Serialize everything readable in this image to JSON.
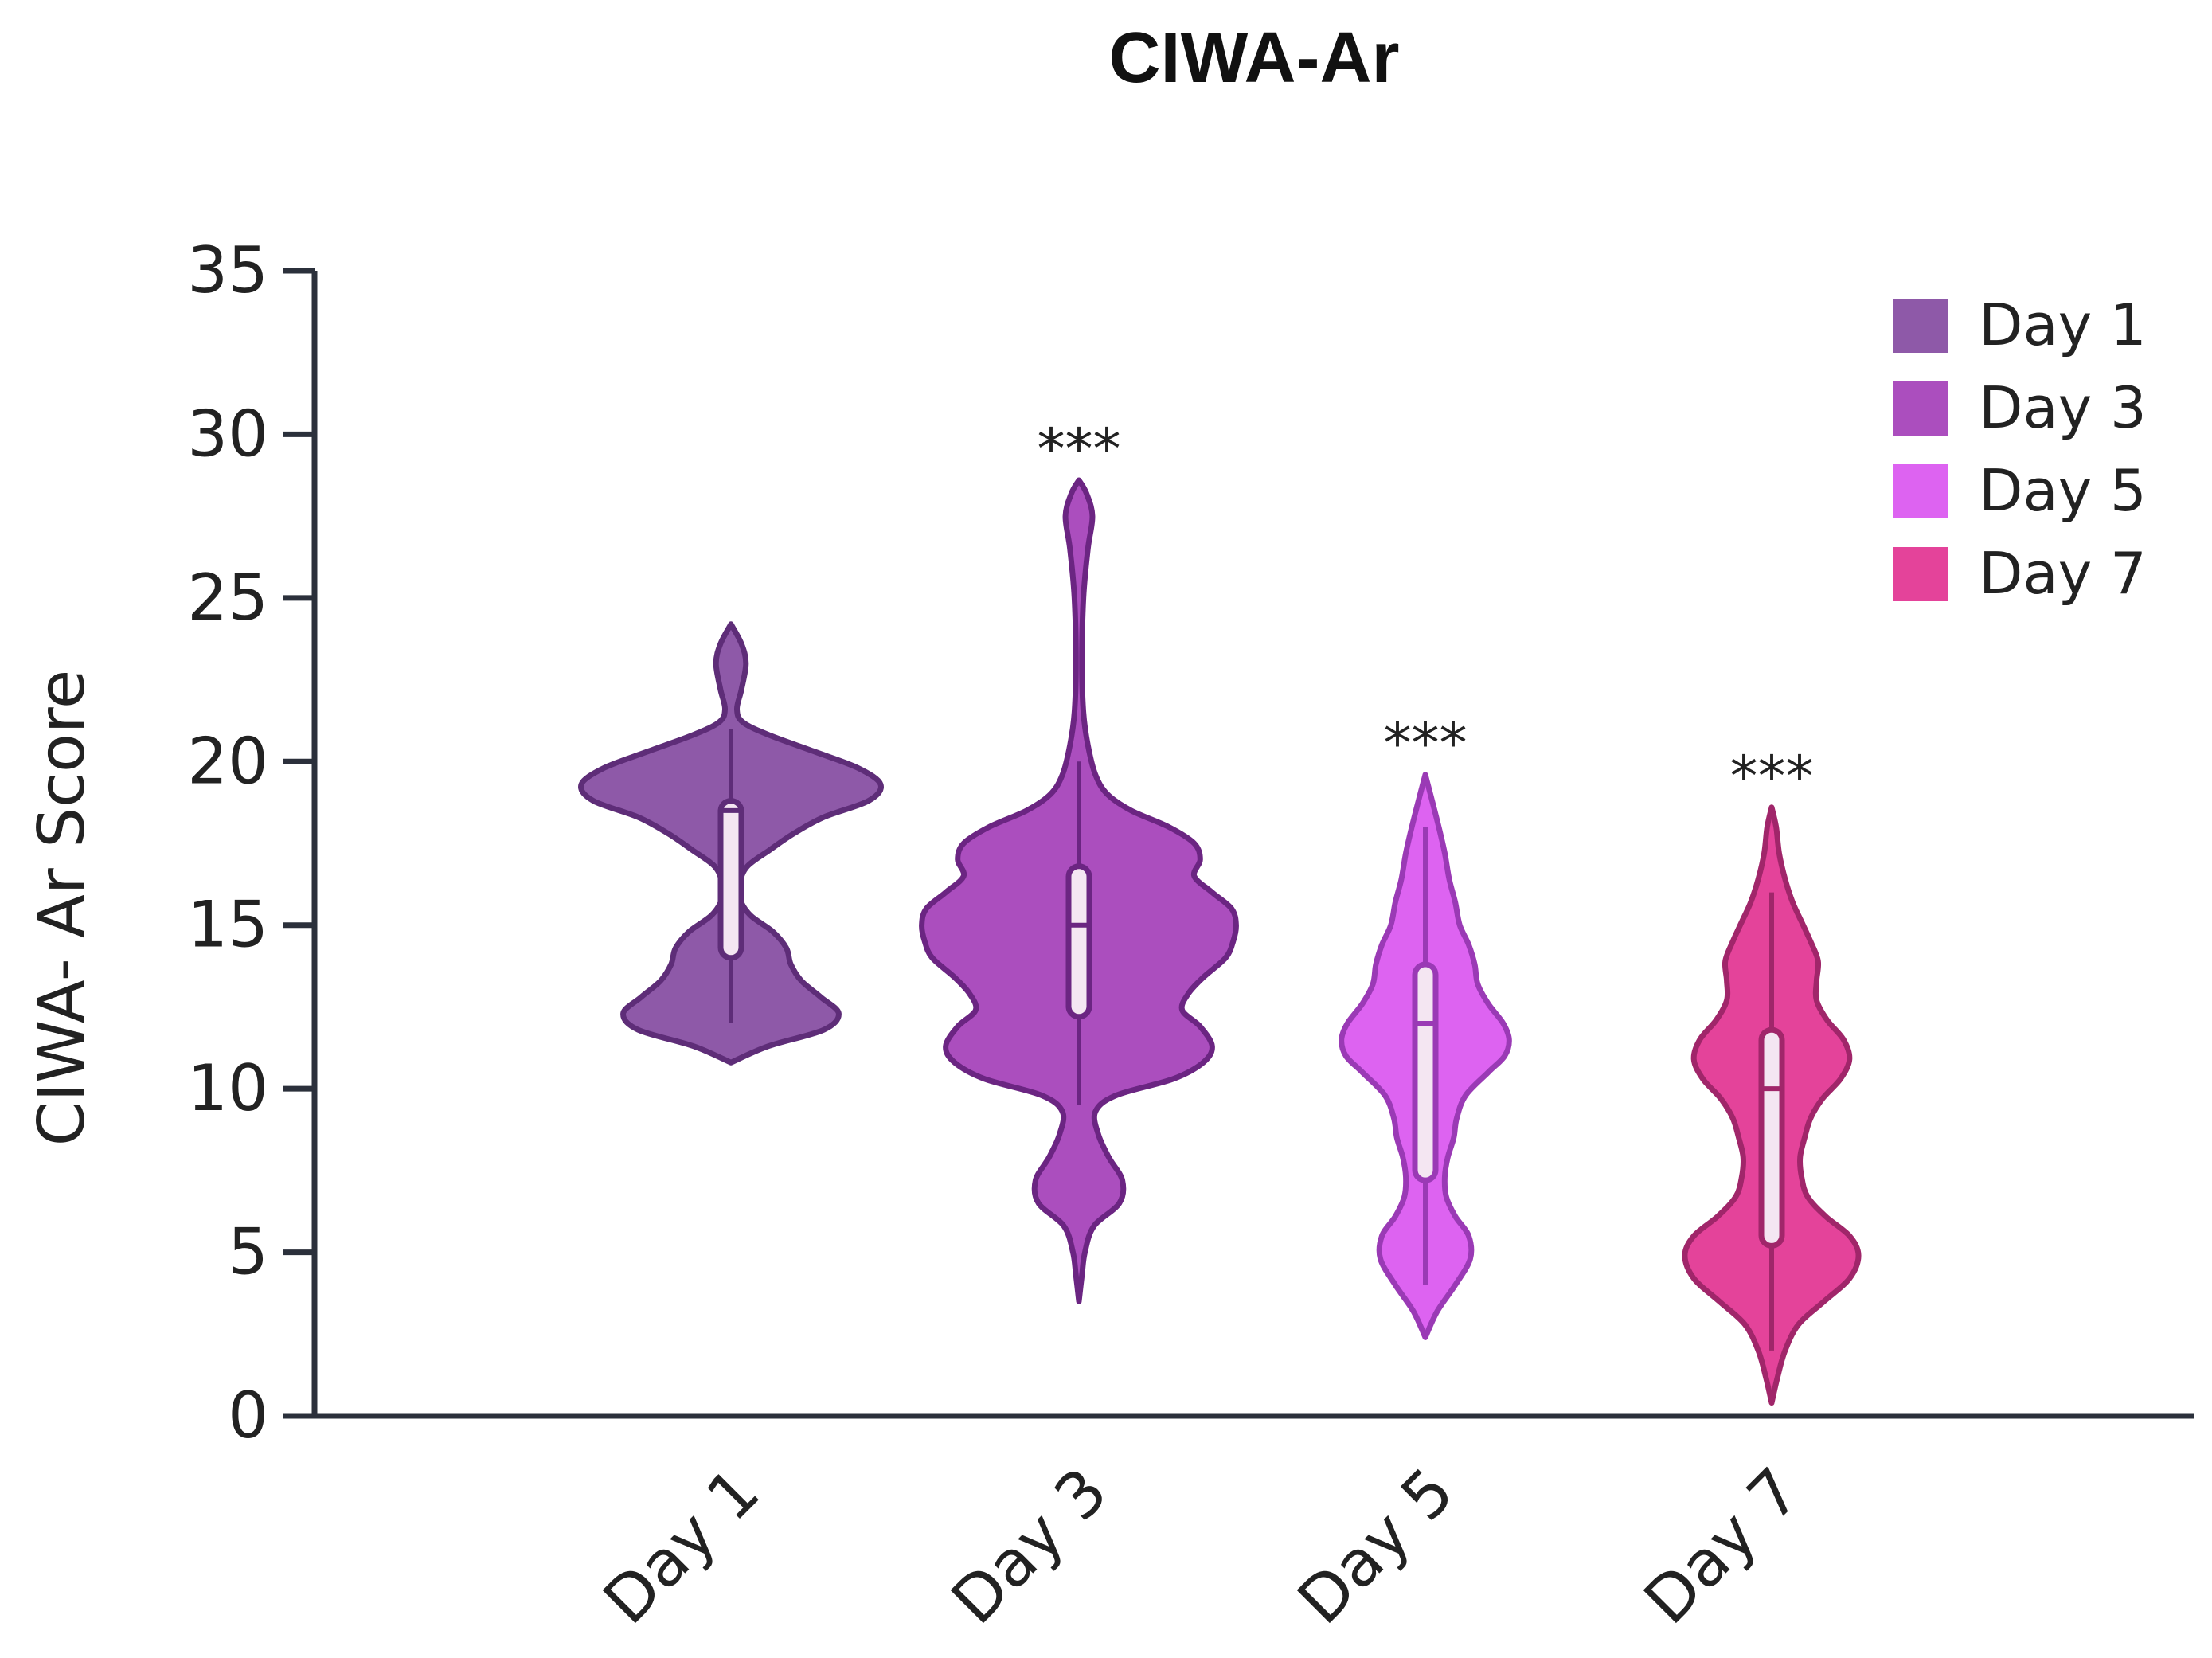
{
  "chart_data": {
    "type": "violin",
    "title": "CIWA-Ar",
    "xlabel": "",
    "ylabel": "CIWA- Ar Score",
    "ylim": [
      0,
      35
    ],
    "yticks": [
      0,
      5,
      10,
      15,
      20,
      25,
      30,
      35
    ],
    "grid": false,
    "legend_position": "top-right",
    "categories": [
      "Day 1",
      "Day 3",
      "Day 5",
      "Day 7"
    ],
    "series": [
      {
        "name": "Day 1",
        "color": "#8E59A8",
        "stroke": "#5E2D78",
        "significance": "",
        "range": [
          10.8,
          24.2
        ],
        "box": {
          "q1": 14,
          "median": 18.5,
          "q3": 18.8,
          "whisker_low": 12,
          "whisker_high": 21
        },
        "density": [
          [
            10.8,
            0
          ],
          [
            11.3,
            0.25
          ],
          [
            11.8,
            0.62
          ],
          [
            12.3,
            0.72
          ],
          [
            12.8,
            0.6
          ],
          [
            13.3,
            0.47
          ],
          [
            13.8,
            0.4
          ],
          [
            14.3,
            0.37
          ],
          [
            14.8,
            0.28
          ],
          [
            15.3,
            0.13
          ],
          [
            15.8,
            0.06
          ],
          [
            16.3,
            0.06
          ],
          [
            16.8,
            0.11
          ],
          [
            17.3,
            0.26
          ],
          [
            17.8,
            0.42
          ],
          [
            18.3,
            0.62
          ],
          [
            18.8,
            0.92
          ],
          [
            19.3,
            1.0
          ],
          [
            19.8,
            0.85
          ],
          [
            20.3,
            0.56
          ],
          [
            20.8,
            0.26
          ],
          [
            21.2,
            0.08
          ],
          [
            21.6,
            0.04
          ],
          [
            22.2,
            0.07
          ],
          [
            23.0,
            0.1
          ],
          [
            23.6,
            0.07
          ],
          [
            24.2,
            0
          ]
        ]
      },
      {
        "name": "Day 3",
        "color": "#AB4EBE",
        "stroke": "#6B2582",
        "significance": "***",
        "range": [
          3.5,
          28.6
        ],
        "box": {
          "q1": 12.2,
          "median": 15,
          "q3": 16.8,
          "whisker_low": 9.5,
          "whisker_high": 20
        },
        "density": [
          [
            3.5,
            0
          ],
          [
            4.3,
            0.02
          ],
          [
            5.0,
            0.04
          ],
          [
            5.8,
            0.1
          ],
          [
            6.5,
            0.27
          ],
          [
            7.2,
            0.29
          ],
          [
            7.9,
            0.2
          ],
          [
            8.6,
            0.13
          ],
          [
            9.3,
            0.11
          ],
          [
            9.8,
            0.25
          ],
          [
            10.3,
            0.63
          ],
          [
            10.8,
            0.83
          ],
          [
            11.3,
            0.89
          ],
          [
            11.9,
            0.81
          ],
          [
            12.4,
            0.69
          ],
          [
            12.9,
            0.73
          ],
          [
            13.4,
            0.83
          ],
          [
            14.0,
            0.98
          ],
          [
            14.5,
            1.03
          ],
          [
            15.0,
            1.05
          ],
          [
            15.5,
            1.02
          ],
          [
            16.0,
            0.89
          ],
          [
            16.5,
            0.77
          ],
          [
            17.0,
            0.81
          ],
          [
            17.5,
            0.77
          ],
          [
            18.0,
            0.6
          ],
          [
            18.5,
            0.35
          ],
          [
            19.0,
            0.19
          ],
          [
            19.6,
            0.11
          ],
          [
            20.5,
            0.06
          ],
          [
            21.5,
            0.03
          ],
          [
            23,
            0.02
          ],
          [
            25,
            0.03
          ],
          [
            26.5,
            0.06
          ],
          [
            27.5,
            0.09
          ],
          [
            28.2,
            0.05
          ],
          [
            28.6,
            0
          ]
        ]
      },
      {
        "name": "Day 5",
        "color": "#DD63F1",
        "stroke": "#9A3AB5",
        "significance": "***",
        "range": [
          2.4,
          19.6
        ],
        "box": {
          "q1": 7.2,
          "median": 12,
          "q3": 13.8,
          "whisker_low": 4,
          "whisker_high": 18
        },
        "density": [
          [
            2.4,
            0
          ],
          [
            3.2,
            0.08
          ],
          [
            4.0,
            0.2
          ],
          [
            4.8,
            0.3
          ],
          [
            5.5,
            0.29
          ],
          [
            6.1,
            0.2
          ],
          [
            6.7,
            0.14
          ],
          [
            7.3,
            0.13
          ],
          [
            7.9,
            0.15
          ],
          [
            8.5,
            0.19
          ],
          [
            9.1,
            0.21
          ],
          [
            9.8,
            0.27
          ],
          [
            10.5,
            0.42
          ],
          [
            11.0,
            0.53
          ],
          [
            11.5,
            0.56
          ],
          [
            12.0,
            0.52
          ],
          [
            12.6,
            0.42
          ],
          [
            13.2,
            0.35
          ],
          [
            13.8,
            0.33
          ],
          [
            14.4,
            0.29
          ],
          [
            15.0,
            0.23
          ],
          [
            15.7,
            0.2
          ],
          [
            16.4,
            0.16
          ],
          [
            17.2,
            0.13
          ],
          [
            18.0,
            0.09
          ],
          [
            18.9,
            0.04
          ],
          [
            19.6,
            0
          ]
        ]
      },
      {
        "name": "Day 7",
        "color": "#E4439A",
        "stroke": "#A0266A",
        "significance": "***",
        "range": [
          0.4,
          18.6
        ],
        "box": {
          "q1": 5.2,
          "median": 10,
          "q3": 11.8,
          "whisker_low": 2,
          "whisker_high": 16
        },
        "density": [
          [
            0.4,
            0
          ],
          [
            1.2,
            0.04
          ],
          [
            2.0,
            0.09
          ],
          [
            2.8,
            0.18
          ],
          [
            3.5,
            0.35
          ],
          [
            4.2,
            0.52
          ],
          [
            4.9,
            0.58
          ],
          [
            5.5,
            0.52
          ],
          [
            6.1,
            0.36
          ],
          [
            6.7,
            0.24
          ],
          [
            7.3,
            0.2
          ],
          [
            7.9,
            0.19
          ],
          [
            8.5,
            0.22
          ],
          [
            9.1,
            0.26
          ],
          [
            9.7,
            0.34
          ],
          [
            10.3,
            0.46
          ],
          [
            10.9,
            0.52
          ],
          [
            11.5,
            0.48
          ],
          [
            12.1,
            0.37
          ],
          [
            12.7,
            0.3
          ],
          [
            13.3,
            0.3
          ],
          [
            13.9,
            0.31
          ],
          [
            14.5,
            0.26
          ],
          [
            15.1,
            0.2
          ],
          [
            15.7,
            0.14
          ],
          [
            16.4,
            0.09
          ],
          [
            17.2,
            0.05
          ],
          [
            18.0,
            0.03
          ],
          [
            18.6,
            0
          ]
        ]
      }
    ]
  }
}
